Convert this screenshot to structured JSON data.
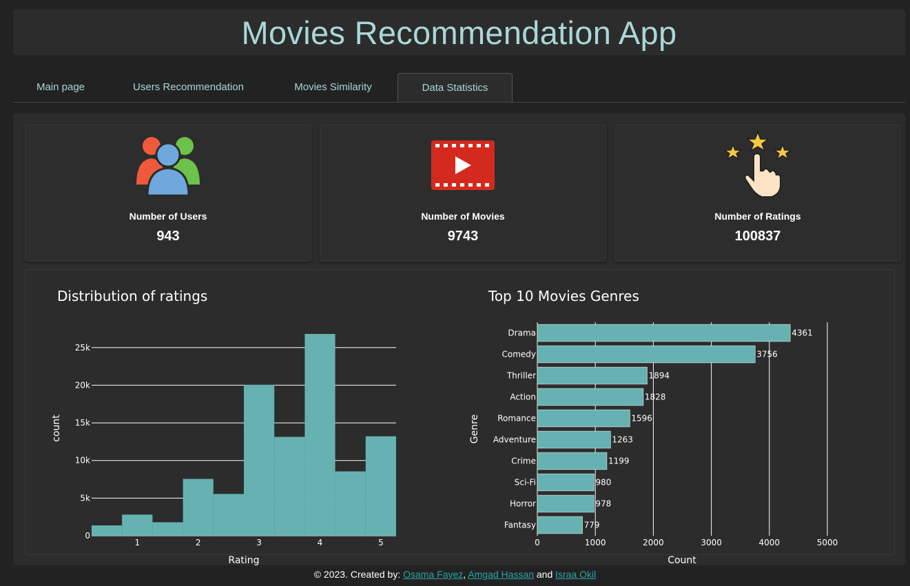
{
  "app": {
    "title": "Movies Recommendation App"
  },
  "tabs": [
    {
      "label": "Main page"
    },
    {
      "label": "Users Recommendation"
    },
    {
      "label": "Movies Similarity"
    },
    {
      "label": "Data Statistics"
    }
  ],
  "active_tab": "Data Statistics",
  "stats": {
    "users": {
      "label": "Number of Users",
      "value": "943",
      "icon": "users-icon"
    },
    "movies": {
      "label": "Number of Movies",
      "value": "9743",
      "icon": "film-play-icon"
    },
    "ratings": {
      "label": "Number of Ratings",
      "value": "100837",
      "icon": "stars-hand-icon"
    }
  },
  "chart_data": [
    {
      "type": "bar",
      "title": "Distribution of ratings",
      "xlabel": "Rating",
      "ylabel": "count",
      "bins": [
        {
          "x0": 0.25,
          "x1": 0.75,
          "value": 1370
        },
        {
          "x0": 0.75,
          "x1": 1.25,
          "value": 2811
        },
        {
          "x0": 1.25,
          "x1": 1.75,
          "value": 1791
        },
        {
          "x0": 1.75,
          "x1": 2.25,
          "value": 7551
        },
        {
          "x0": 2.25,
          "x1": 2.75,
          "value": 5550
        },
        {
          "x0": 2.75,
          "x1": 3.25,
          "value": 20047
        },
        {
          "x0": 3.25,
          "x1": 3.75,
          "value": 13136
        },
        {
          "x0": 3.75,
          "x1": 4.25,
          "value": 26818
        },
        {
          "x0": 4.25,
          "x1": 4.75,
          "value": 8551
        },
        {
          "x0": 4.75,
          "x1": 5.25,
          "value": 13211
        }
      ],
      "xlim": [
        0.25,
        5.25
      ],
      "ylim": [
        0,
        28000
      ],
      "xticks": [
        1,
        2,
        3,
        4,
        5
      ],
      "yticks": [
        {
          "value": 0,
          "label": "0"
        },
        {
          "value": 5000,
          "label": "5k"
        },
        {
          "value": 10000,
          "label": "10k"
        },
        {
          "value": 15000,
          "label": "15k"
        },
        {
          "value": 20000,
          "label": "20k"
        },
        {
          "value": 25000,
          "label": "25k"
        }
      ],
      "color": "#66b2b2",
      "grid": true
    },
    {
      "type": "bar",
      "orientation": "horizontal",
      "title": "Top 10 Movies Genres",
      "xlabel": "Count",
      "ylabel": "Genre",
      "categories": [
        "Drama",
        "Comedy",
        "Thriller",
        "Action",
        "Romance",
        "Adventure",
        "Crime",
        "Sci-Fi",
        "Horror",
        "Fantasy"
      ],
      "values": [
        4361,
        3756,
        1894,
        1828,
        1596,
        1263,
        1199,
        980,
        978,
        779
      ],
      "xlim": [
        0,
        5000
      ],
      "xticks": [
        0,
        1000,
        2000,
        3000,
        4000,
        5000
      ],
      "color": "#66b2b2",
      "grid": true
    }
  ],
  "footer": {
    "prefix": "© 2023. Created by:",
    "authors": [
      "Osama Fayez",
      "Amgad Hassan",
      "Israa Okil"
    ],
    "sep": ",",
    "and": "and"
  },
  "colors": {
    "accent": "#a9d7d8",
    "bar": "#66b2b2",
    "link": "#2aa5a6",
    "background": "#222222",
    "panel": "#2c2c2c"
  }
}
